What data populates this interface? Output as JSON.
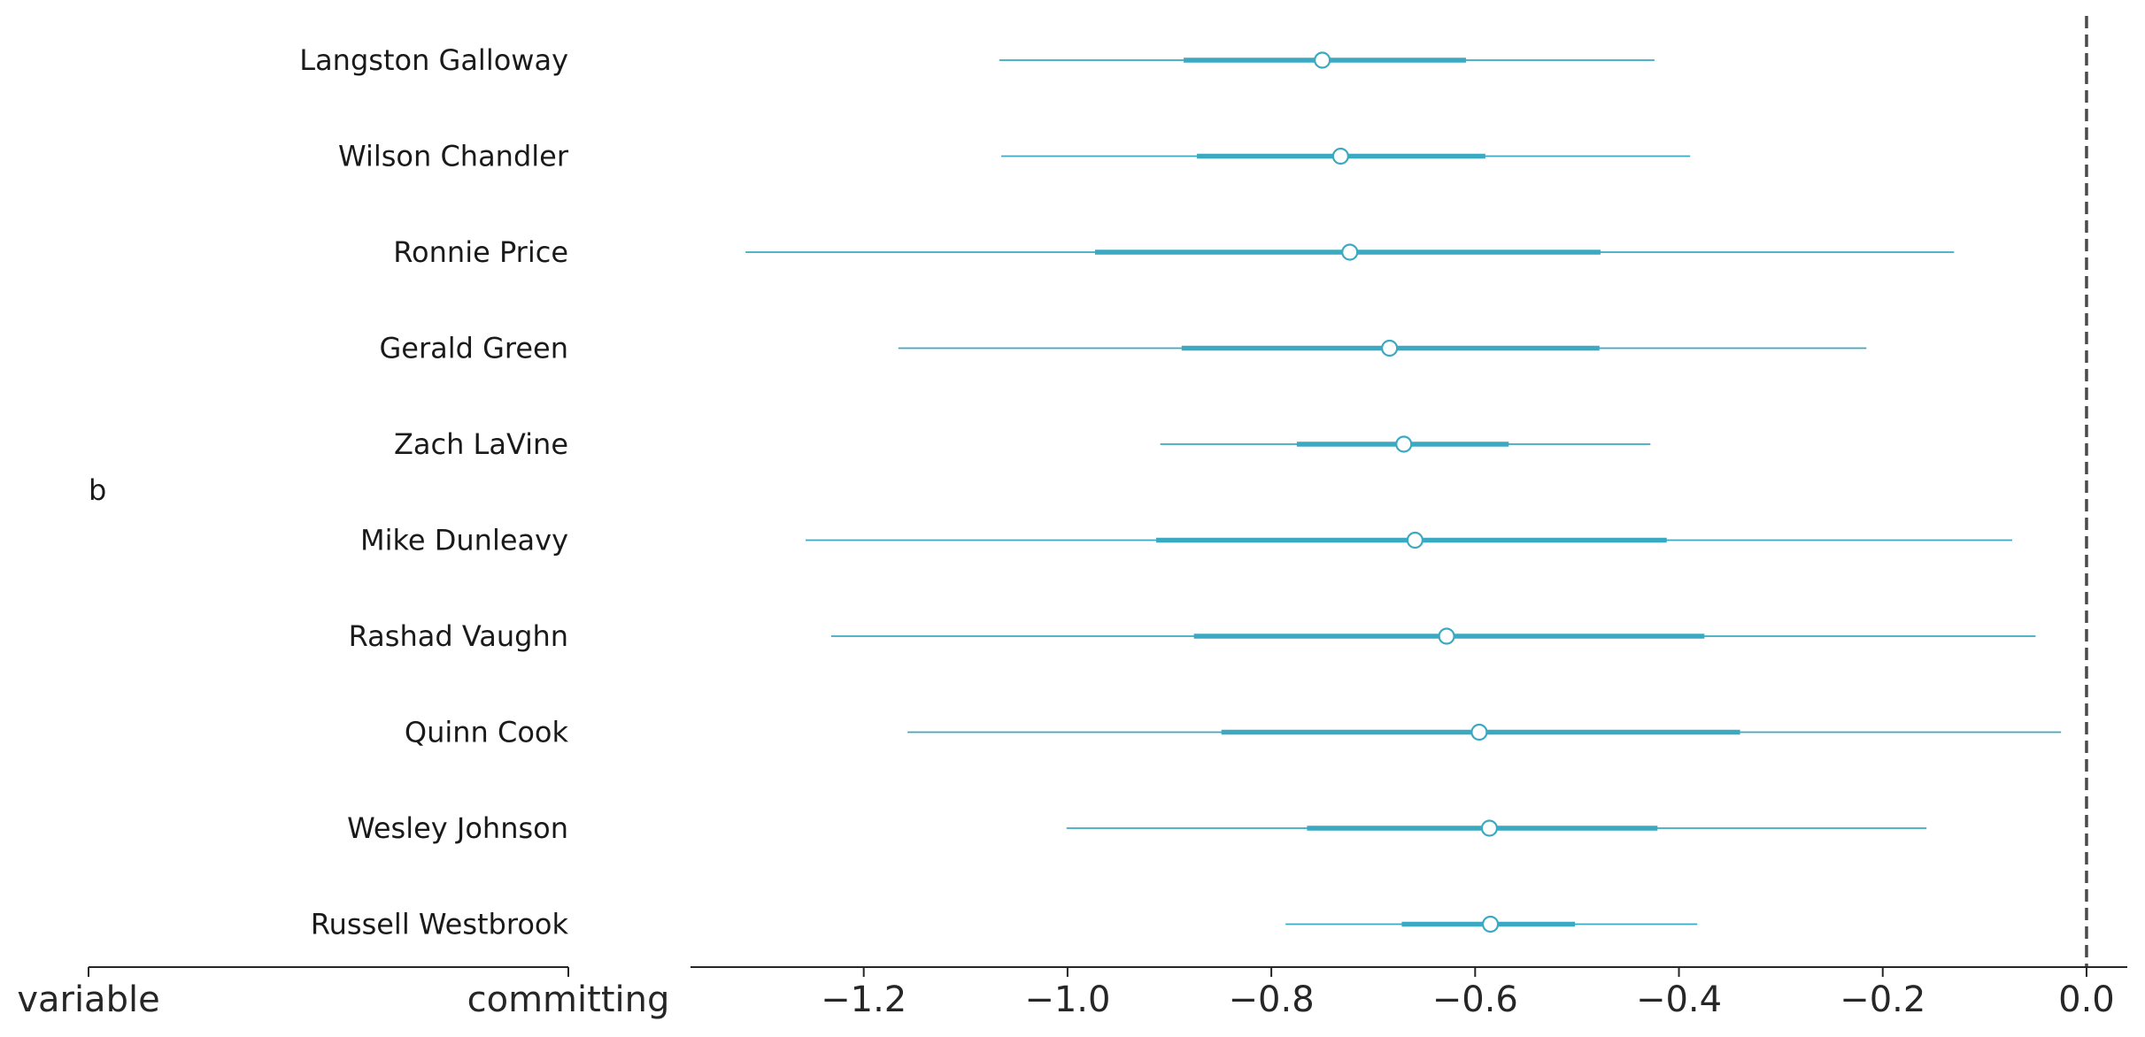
{
  "chart_data": {
    "type": "forest",
    "group_label": "b",
    "column_headers": [
      "variable",
      "committing"
    ],
    "rows": [
      {
        "label": "Langston Galloway",
        "hdi_low": -1.067,
        "iqr_low": -0.886,
        "median": -0.75,
        "iqr_high": -0.609,
        "hdi_high": -0.424
      },
      {
        "label": "Wilson Chandler",
        "hdi_low": -1.065,
        "iqr_low": -0.873,
        "median": -0.732,
        "iqr_high": -0.59,
        "hdi_high": -0.389
      },
      {
        "label": "Ronnie Price",
        "hdi_low": -1.316,
        "iqr_low": -0.973,
        "median": -0.723,
        "iqr_high": -0.477,
        "hdi_high": -0.13
      },
      {
        "label": "Gerald Green",
        "hdi_low": -1.166,
        "iqr_low": -0.888,
        "median": -0.684,
        "iqr_high": -0.478,
        "hdi_high": -0.216
      },
      {
        "label": "Zach LaVine",
        "hdi_low": -0.909,
        "iqr_low": -0.775,
        "median": -0.67,
        "iqr_high": -0.567,
        "hdi_high": -0.428
      },
      {
        "label": "Mike Dunleavy",
        "hdi_low": -1.257,
        "iqr_low": -0.913,
        "median": -0.659,
        "iqr_high": -0.412,
        "hdi_high": -0.073
      },
      {
        "label": "Rashad Vaughn",
        "hdi_low": -1.232,
        "iqr_low": -0.876,
        "median": -0.628,
        "iqr_high": -0.375,
        "hdi_high": -0.05
      },
      {
        "label": "Quinn Cook",
        "hdi_low": -1.157,
        "iqr_low": -0.849,
        "median": -0.596,
        "iqr_high": -0.34,
        "hdi_high": -0.025
      },
      {
        "label": "Wesley Johnson",
        "hdi_low": -1.001,
        "iqr_low": -0.765,
        "median": -0.586,
        "iqr_high": -0.421,
        "hdi_high": -0.157
      },
      {
        "label": "Russell Westbrook",
        "hdi_low": -0.786,
        "iqr_low": -0.672,
        "median": -0.585,
        "iqr_high": -0.502,
        "hdi_high": -0.382
      }
    ],
    "x_ticks": [
      -1.2,
      -1.0,
      -0.8,
      -0.6,
      -0.4,
      -0.2,
      0.0
    ],
    "x_tick_labels": [
      "−1.2",
      "−1.0",
      "−0.8",
      "−0.6",
      "−0.4",
      "−0.2",
      "0.0"
    ],
    "xlim": [
      -1.37,
      0.04
    ],
    "reference_line": 0.0,
    "colors": {
      "series": "#3aa9c1",
      "reference": "#4a4a4a",
      "axis": "#262626",
      "marker_fill": "#ffffff"
    }
  }
}
